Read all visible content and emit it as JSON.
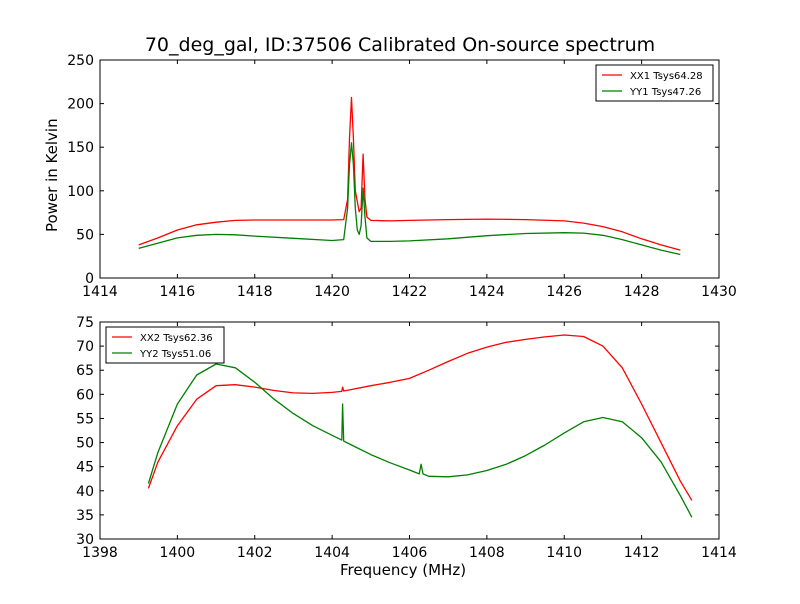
{
  "chart_data": [
    {
      "type": "line",
      "title": "70_deg_gal, ID:37506 Calibrated On-source spectrum",
      "xlabel": "",
      "ylabel": "Power in Kelvin",
      "xlim": [
        1414,
        1430
      ],
      "ylim": [
        0,
        250
      ],
      "xticks": [
        1414,
        1416,
        1418,
        1420,
        1422,
        1424,
        1426,
        1428,
        1430
      ],
      "yticks": [
        0,
        50,
        100,
        150,
        200,
        250
      ],
      "grid": false,
      "legend": "top-right",
      "series": [
        {
          "name": "XX1 Tsys64.28",
          "color": "#ff0000",
          "x": [
            1415.0,
            1415.5,
            1416.0,
            1416.5,
            1417.0,
            1417.5,
            1418.0,
            1419.0,
            1420.0,
            1420.3,
            1420.4,
            1420.45,
            1420.5,
            1420.55,
            1420.6,
            1420.7,
            1420.75,
            1420.8,
            1420.85,
            1420.9,
            1421.0,
            1421.5,
            1422.0,
            1423.0,
            1424.0,
            1425.0,
            1426.0,
            1426.5,
            1427.0,
            1427.5,
            1428.0,
            1428.5,
            1429.0
          ],
          "y": [
            38,
            46,
            55,
            61,
            64,
            66,
            66.5,
            66.5,
            66.5,
            67,
            90,
            160,
            207,
            160,
            100,
            76,
            80,
            142,
            90,
            70,
            66,
            65.5,
            66,
            67,
            67.5,
            67,
            65.5,
            63,
            59,
            53,
            45,
            38,
            32
          ]
        },
        {
          "name": "YY1 Tsys47.26",
          "color": "#008000",
          "x": [
            1415.0,
            1415.5,
            1416.0,
            1416.5,
            1417.0,
            1417.5,
            1418.0,
            1419.0,
            1420.0,
            1420.3,
            1420.4,
            1420.45,
            1420.5,
            1420.55,
            1420.6,
            1420.65,
            1420.7,
            1420.75,
            1420.8,
            1420.85,
            1420.9,
            1421.0,
            1421.5,
            1422.0,
            1423.0,
            1424.0,
            1425.0,
            1426.0,
            1426.5,
            1427.0,
            1427.5,
            1428.0,
            1428.5,
            1429.0
          ],
          "y": [
            34,
            40,
            46,
            49,
            50,
            49.5,
            48,
            45.5,
            43,
            44,
            80,
            130,
            155,
            130,
            80,
            55,
            50,
            60,
            103,
            70,
            46,
            42,
            42,
            42.5,
            45,
            48.5,
            51,
            52,
            51.5,
            49,
            44,
            38,
            32,
            27
          ]
        }
      ]
    },
    {
      "type": "line",
      "title": "",
      "xlabel": "Frequency (MHz)",
      "ylabel": "",
      "xlim": [
        1398,
        1414
      ],
      "ylim": [
        30,
        75
      ],
      "xticks": [
        1398,
        1400,
        1402,
        1404,
        1406,
        1408,
        1410,
        1412,
        1414
      ],
      "yticks": [
        30,
        35,
        40,
        45,
        50,
        55,
        60,
        65,
        70,
        75
      ],
      "grid": false,
      "legend": "top-left",
      "series": [
        {
          "name": "XX2 Tsys62.36",
          "color": "#ff0000",
          "x": [
            1399.25,
            1399.5,
            1400.0,
            1400.5,
            1401.0,
            1401.5,
            1402.0,
            1402.5,
            1403.0,
            1403.5,
            1404.0,
            1404.25,
            1404.27,
            1404.3,
            1404.5,
            1405.0,
            1405.5,
            1406.0,
            1406.5,
            1407.0,
            1407.5,
            1408.0,
            1408.5,
            1409.0,
            1409.5,
            1410.0,
            1410.5,
            1411.0,
            1411.5,
            1412.0,
            1412.5,
            1413.0,
            1413.3
          ],
          "y": [
            40.5,
            46,
            53.5,
            59,
            61.8,
            62,
            61.5,
            60.8,
            60.3,
            60.2,
            60.4,
            60.6,
            61.5,
            60.7,
            61,
            61.8,
            62.5,
            63.3,
            65,
            66.8,
            68.5,
            69.8,
            70.8,
            71.4,
            71.9,
            72.3,
            72,
            70,
            65.5,
            58,
            50,
            42,
            38
          ]
        },
        {
          "name": "YY2 Tsys51.06",
          "color": "#008000",
          "x": [
            1399.25,
            1399.5,
            1400.0,
            1400.5,
            1401.0,
            1401.5,
            1402.0,
            1402.5,
            1403.0,
            1403.5,
            1404.0,
            1404.25,
            1404.27,
            1404.3,
            1404.5,
            1405.0,
            1405.5,
            1406.0,
            1406.25,
            1406.3,
            1406.35,
            1406.5,
            1407.0,
            1407.5,
            1408.0,
            1408.5,
            1409.0,
            1409.5,
            1410.0,
            1410.5,
            1411.0,
            1411.5,
            1412.0,
            1412.5,
            1413.0,
            1413.3
          ],
          "y": [
            41.5,
            48,
            58,
            64,
            66.3,
            65.5,
            62.5,
            59,
            56,
            53.5,
            51.5,
            50.5,
            58,
            50.3,
            49.5,
            47.5,
            45.8,
            44.3,
            43.5,
            45.5,
            43.5,
            43,
            42.9,
            43.3,
            44.2,
            45.5,
            47.3,
            49.5,
            52,
            54.3,
            55.2,
            54.3,
            51,
            46,
            39,
            34.5
          ]
        }
      ]
    }
  ]
}
